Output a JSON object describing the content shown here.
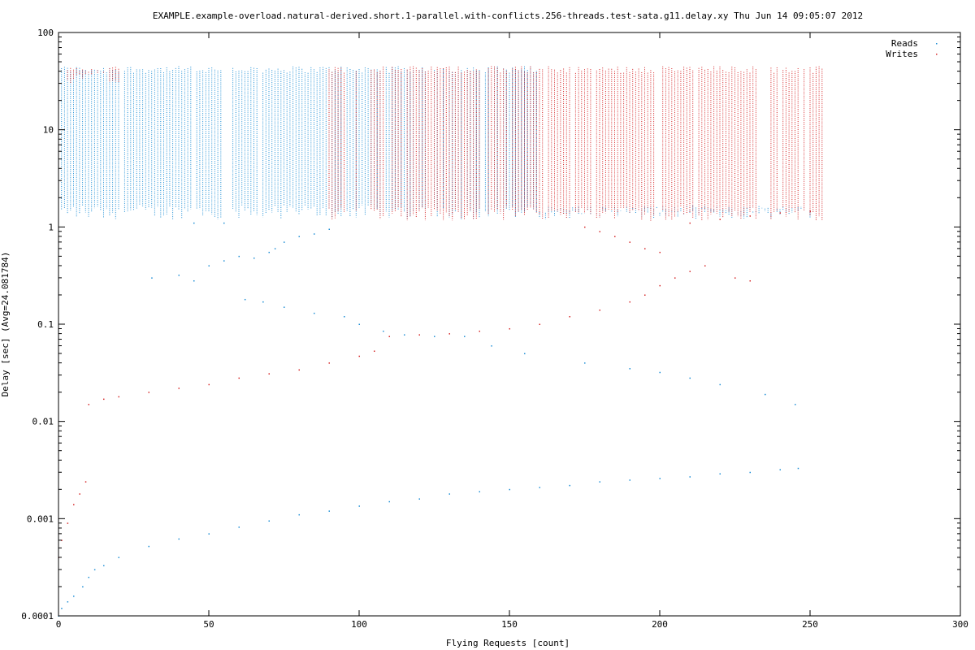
{
  "chart_data": {
    "type": "scatter",
    "title": "EXAMPLE.example-overload.natural-derived.short.1-parallel.with-conflicts.256-threads.test-sata.g11.delay.xy Thu Jun 14 09:05:07 2012",
    "xlabel": "Flying Requests [count]",
    "ylabel": "Delay [sec]  (Avg=24.081784)",
    "x_scale": "linear",
    "y_scale": "log",
    "xlim": [
      0,
      300
    ],
    "ylim": [
      0.0001,
      100
    ],
    "x_ticks": [
      0,
      50,
      100,
      150,
      200,
      250,
      300
    ],
    "x_tick_labels": [
      "0",
      "50",
      "100",
      "150",
      "200",
      "250",
      "300"
    ],
    "y_ticks": [
      0.0001,
      0.001,
      0.01,
      0.1,
      1,
      10,
      100
    ],
    "y_tick_labels": [
      "0.0001",
      "0.001",
      "0.01",
      "0.1",
      "1",
      "10",
      "100"
    ],
    "grid": false,
    "legend_position": "top-right",
    "series": [
      {
        "name": "Reads",
        "color": "#1f8fd6",
        "bands": [
          {
            "x": [
              0,
              160
            ],
            "y_min": 1.2,
            "y_max": 45
          },
          {
            "x": [
              160,
              250
            ],
            "y_min": 1.2,
            "y_max": 1.6
          }
        ],
        "points": [
          [
            0,
            0.0001
          ],
          [
            1,
            0.00012
          ],
          [
            3,
            0.00014
          ],
          [
            5,
            0.00016
          ],
          [
            8,
            0.0002
          ],
          [
            10,
            0.00025
          ],
          [
            12,
            0.0003
          ],
          [
            15,
            0.00033
          ],
          [
            20,
            0.0004
          ],
          [
            30,
            0.00052
          ],
          [
            40,
            0.00062
          ],
          [
            50,
            0.0007
          ],
          [
            60,
            0.00082
          ],
          [
            70,
            0.00095
          ],
          [
            80,
            0.0011
          ],
          [
            90,
            0.0012
          ],
          [
            100,
            0.00135
          ],
          [
            110,
            0.0015
          ],
          [
            120,
            0.0016
          ],
          [
            130,
            0.0018
          ],
          [
            140,
            0.0019
          ],
          [
            150,
            0.002
          ],
          [
            160,
            0.0021
          ],
          [
            170,
            0.0022
          ],
          [
            180,
            0.0024
          ],
          [
            190,
            0.0025
          ],
          [
            200,
            0.0026
          ],
          [
            210,
            0.0027
          ],
          [
            220,
            0.0029
          ],
          [
            230,
            0.003
          ],
          [
            240,
            0.0032
          ],
          [
            246,
            0.0033
          ],
          [
            31,
            0.3
          ],
          [
            40,
            0.32
          ],
          [
            45,
            0.28
          ],
          [
            50,
            0.4
          ],
          [
            55,
            0.45
          ],
          [
            60,
            0.5
          ],
          [
            65,
            0.48
          ],
          [
            70,
            0.55
          ],
          [
            72,
            0.6
          ],
          [
            75,
            0.7
          ],
          [
            80,
            0.8
          ],
          [
            85,
            0.85
          ],
          [
            90,
            0.95
          ],
          [
            45,
            1.1
          ],
          [
            55,
            1.1
          ],
          [
            62,
            0.18
          ],
          [
            68,
            0.17
          ],
          [
            75,
            0.15
          ],
          [
            85,
            0.13
          ],
          [
            95,
            0.12
          ],
          [
            100,
            0.1
          ],
          [
            108,
            0.085
          ],
          [
            115,
            0.078
          ],
          [
            125,
            0.075
          ],
          [
            135,
            0.075
          ],
          [
            144,
            0.06
          ],
          [
            155,
            0.05
          ],
          [
            175,
            0.04
          ],
          [
            190,
            0.035
          ],
          [
            200,
            0.032
          ],
          [
            210,
            0.028
          ],
          [
            220,
            0.024
          ],
          [
            235,
            0.019
          ],
          [
            245,
            0.015
          ]
        ]
      },
      {
        "name": "Writes",
        "color": "#d62728",
        "bands": [
          {
            "x": [
              0,
              20
            ],
            "y_min": 30,
            "y_max": 45
          },
          {
            "x": [
              90,
              254
            ],
            "y_min": 1.15,
            "y_max": 45
          }
        ],
        "points": [
          [
            0,
            0.0004
          ],
          [
            1,
            0.0006
          ],
          [
            3,
            0.0009
          ],
          [
            5,
            0.0014
          ],
          [
            7,
            0.0018
          ],
          [
            9,
            0.0024
          ],
          [
            10,
            0.015
          ],
          [
            15,
            0.017
          ],
          [
            20,
            0.018
          ],
          [
            30,
            0.02
          ],
          [
            40,
            0.022
          ],
          [
            50,
            0.024
          ],
          [
            60,
            0.028
          ],
          [
            70,
            0.031
          ],
          [
            80,
            0.034
          ],
          [
            90,
            0.04
          ],
          [
            100,
            0.047
          ],
          [
            105,
            0.053
          ],
          [
            110,
            0.075
          ],
          [
            120,
            0.078
          ],
          [
            130,
            0.08
          ],
          [
            140,
            0.085
          ],
          [
            150,
            0.09
          ],
          [
            160,
            0.1
          ],
          [
            170,
            0.12
          ],
          [
            180,
            0.14
          ],
          [
            190,
            0.17
          ],
          [
            195,
            0.2
          ],
          [
            200,
            0.25
          ],
          [
            205,
            0.3
          ],
          [
            210,
            0.35
          ],
          [
            215,
            0.4
          ],
          [
            225,
            0.3
          ],
          [
            230,
            0.28
          ],
          [
            175,
            1.0
          ],
          [
            180,
            0.9
          ],
          [
            185,
            0.8
          ],
          [
            190,
            0.7
          ],
          [
            195,
            0.6
          ],
          [
            200,
            0.55
          ],
          [
            210,
            1.1
          ],
          [
            220,
            1.2
          ],
          [
            230,
            1.3
          ],
          [
            240,
            1.4
          ],
          [
            250,
            1.45
          ]
        ]
      }
    ]
  }
}
